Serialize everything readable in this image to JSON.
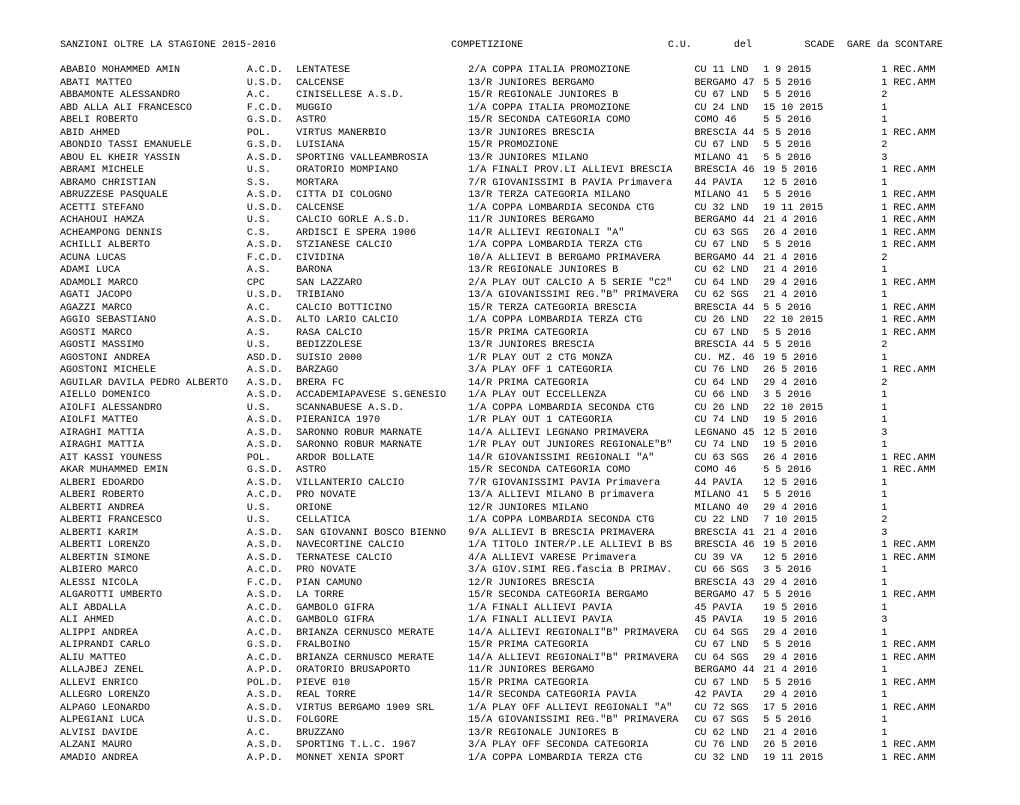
{
  "header": {
    "sanzioni": "SANZIONI OLTRE LA STAGIONE   2015-2016",
    "competizione": "COMPETIZIONE",
    "cu": "C.U.",
    "del": "del",
    "scade": "SCADE",
    "gare": "GARE da SCONTARE"
  },
  "rows": [
    {
      "name": "ABABIO MOHAMMED AMIN",
      "c1": "A.C.D.",
      "c2": "LENTATESE",
      "comp": "2/A COPPA ITALIA PROMOZIONE",
      "cu": "CU 11 LND",
      "del": "1  9 2015",
      "scade": "",
      "rest": "1  REC.AMM"
    },
    {
      "name": "ABATI MATTEO",
      "c1": "U.S.D.",
      "c2": "CALCENSE",
      "comp": "13/R JUNIORES BERGAMO",
      "cu": "BERGAMO 47",
      "del": "5  5 2016",
      "scade": "",
      "rest": "1  REC.AMM"
    },
    {
      "name": "ABBAMONTE ALESSANDRO",
      "c1": "A.C.",
      "c2": "CINISELLESE A.S.D.",
      "comp": "15/R REGIONALE JUNIORES B",
      "cu": "CU 67 LND",
      "del": "5  5 2016",
      "scade": "",
      "rest": "2"
    },
    {
      "name": "ABD ALLA ALI FRANCESCO",
      "c1": "F.C.D.",
      "c2": "MUGGIO",
      "comp": "1/A COPPA ITALIA PROMOZIONE",
      "cu": "CU 24 LND",
      "del": "15 10 2015",
      "scade": "",
      "rest": "1"
    },
    {
      "name": "ABELI ROBERTO",
      "c1": "G.S.D.",
      "c2": "ASTRO",
      "comp": "15/R SECONDA CATEGORIA COMO",
      "cu": "COMO 46",
      "del": "5  5 2016",
      "scade": "",
      "rest": "1"
    },
    {
      "name": "ABID AHMED",
      "c1": "POL.",
      "c2": "VIRTUS MANERBIO",
      "comp": "13/R JUNIORES BRESCIA",
      "cu": "BRESCIA 44",
      "del": "5  5 2016",
      "scade": "",
      "rest": "1  REC.AMM"
    },
    {
      "name": "ABONDIO TASSI EMANUELE",
      "c1": "G.S.D.",
      "c2": "LUISIANA",
      "comp": "15/R PROMOZIONE",
      "cu": "CU 67 LND",
      "del": "5  5 2016",
      "scade": "",
      "rest": "2"
    },
    {
      "name": "ABOU EL KHEIR YASSIN",
      "c1": "A.S.D.",
      "c2": "SPORTING VALLEAMBROSIA",
      "comp": "13/R JUNIORES MILANO",
      "cu": "MILANO 41",
      "del": "5  5 2016",
      "scade": "",
      "rest": "3"
    },
    {
      "name": "ABRAMI MICHELE",
      "c1": "U.S.",
      "c2": "ORATORIO MOMPIANO",
      "comp": "1/A FINALI PROV.LI ALLIEVI BRESCIA",
      "cu": "BRESCIA 46",
      "del": "19  5 2016",
      "scade": "",
      "rest": "1  REC.AMM"
    },
    {
      "name": "ABRAMO CHRISTIAN",
      "c1": "S.S.",
      "c2": "MORTARA",
      "comp": "7/R GIOVANISSIMI B PAVIA Primavera",
      "cu": "44 PAVIA",
      "del": "12  5 2016",
      "scade": "",
      "rest": "1"
    },
    {
      "name": "ABRUZZESE PASQUALE",
      "c1": "A.S.D.",
      "c2": "CITTA DI COLOGNO",
      "comp": "13/R TERZA CATEGORIA MILANO",
      "cu": "MILANO 41",
      "del": "5  5 2016",
      "scade": "",
      "rest": "1  REC.AMM"
    },
    {
      "name": "ACETTI STEFANO",
      "c1": "U.S.D.",
      "c2": "CALCENSE",
      "comp": "1/A COPPA LOMBARDIA SECONDA CTG",
      "cu": "CU 32 LND",
      "del": "19 11 2015",
      "scade": "",
      "rest": "1  REC.AMM"
    },
    {
      "name": "ACHAHOUI HAMZA",
      "c1": "U.S.",
      "c2": "CALCIO GORLE A.S.D.",
      "comp": "11/R JUNIORES BERGAMO",
      "cu": "BERGAMO 44",
      "del": "21  4 2016",
      "scade": "",
      "rest": "1  REC.AMM"
    },
    {
      "name": "ACHEAMPONG DENNIS",
      "c1": "C.S.",
      "c2": "ARDISCI E SPERA 1906",
      "comp": "14/R ALLIEVI REGIONALI \"A\"",
      "cu": "CU 63 SGS",
      "del": "26  4 2016",
      "scade": "",
      "rest": "1  REC.AMM"
    },
    {
      "name": "ACHILLI ALBERTO",
      "c1": "A.S.D.",
      "c2": "STZIANESE CALCIO",
      "comp": "1/A COPPA LOMBARDIA TERZA CTG",
      "cu": "CU 67 LND",
      "del": "5  5 2016",
      "scade": "",
      "rest": "1  REC.AMM"
    },
    {
      "name": "ACUNA LUCAS",
      "c1": "F.C.D.",
      "c2": "CIVIDINA",
      "comp": "10/A ALLIEVI B BERGAMO PRIMAVERA",
      "cu": "BERGAMO 44",
      "del": "21  4 2016",
      "scade": "",
      "rest": "2"
    },
    {
      "name": "ADAMI LUCA",
      "c1": "A.S.",
      "c2": "BARONA",
      "comp": "13/R REGIONALE JUNIORES B",
      "cu": "CU 62 LND",
      "del": "21  4 2016",
      "scade": "",
      "rest": "1"
    },
    {
      "name": "ADAMOLI MARCO",
      "c1": "CPC",
      "c2": "SAN LAZZARO",
      "comp": "2/A PLAY OUT CALCIO A 5 SERIE \"C2\"",
      "cu": "CU 64 LND",
      "del": "29  4 2016",
      "scade": "",
      "rest": "1  REC.AMM"
    },
    {
      "name": "AGATI JACOPO",
      "c1": "U.S.D.",
      "c2": "TRIBIANO",
      "comp": "13/A GIOVANISSIMI REG.\"B\" PRIMAVERA",
      "cu": "CU 62 SGS",
      "del": "21  4 2016",
      "scade": "",
      "rest": "1"
    },
    {
      "name": "AGAZZI MARCO",
      "c1": "A.C.",
      "c2": "CALCIO BOTTICINO",
      "comp": "15/R TERZA CATEGORIA BRESCIA",
      "cu": "BRESCIA 44",
      "del": "5  5 2016",
      "scade": "",
      "rest": "1  REC.AMM"
    },
    {
      "name": "AGGIO SEBASTIANO",
      "c1": "A.S.D.",
      "c2": "ALTO LARIO CALCIO",
      "comp": "1/A COPPA LOMBARDIA TERZA CTG",
      "cu": "CU 26 LND",
      "del": "22 10 2015",
      "scade": "",
      "rest": "1  REC.AMM"
    },
    {
      "name": "AGOSTI MARCO",
      "c1": "A.S.",
      "c2": "RASA CALCIO",
      "comp": "15/R PRIMA CATEGORIA",
      "cu": "CU 67 LND",
      "del": "5  5 2016",
      "scade": "",
      "rest": "1  REC.AMM"
    },
    {
      "name": "AGOSTI MASSIMO",
      "c1": "U.S.",
      "c2": "BEDIZZOLESE",
      "comp": "13/R JUNIORES BRESCIA",
      "cu": "BRESCIA 44",
      "del": "5  5 2016",
      "scade": "",
      "rest": "2"
    },
    {
      "name": "AGOSTONI ANDREA",
      "c1": "ASD.D.",
      "c2": "SUISIO 2000",
      "comp": "1/R PLAY OUT 2 CTG MONZA",
      "cu": "CU. MZ. 46",
      "del": "19  5 2016",
      "scade": "",
      "rest": "1"
    },
    {
      "name": "AGOSTONI MICHELE",
      "c1": "A.S.D.",
      "c2": "BARZAGO",
      "comp": "3/A PLAY OFF 1 CATEGORIA",
      "cu": "CU 76 LND",
      "del": "26  5 2016",
      "scade": "",
      "rest": "1  REC.AMM"
    },
    {
      "name": "AGUILAR DAVILA PEDRO ALBERTO",
      "c1": "A.S.D.",
      "c2": "BRERA FC",
      "comp": "14/R PRIMA CATEGORIA",
      "cu": "CU 64 LND",
      "del": "29  4 2016",
      "scade": "",
      "rest": "2"
    },
    {
      "name": "AIELLO DOMENICO",
      "c1": "A.S.D.",
      "c2": "ACCADEMIAPAVESE S.GENESIO",
      "comp": "1/A PLAY OUT ECCELLENZA",
      "cu": "CU 66 LND",
      "del": "3  5 2016",
      "scade": "",
      "rest": "1"
    },
    {
      "name": "AIOLFI ALESSANDRO",
      "c1": "U.S.",
      "c2": "SCANNABUESE A.S.D.",
      "comp": "1/A COPPA LOMBARDIA SECONDA CTG",
      "cu": "CU 26 LND",
      "del": "22 10 2015",
      "scade": "",
      "rest": "1"
    },
    {
      "name": "AIOLFI MATTEO",
      "c1": "A.S.D.",
      "c2": "PIERANICA 1970",
      "comp": "1/R PLAY OUT 1 CATEGORIA",
      "cu": "CU 74 LND",
      "del": "19  5 2016",
      "scade": "",
      "rest": "1"
    },
    {
      "name": "AIRAGHI MATTIA",
      "c1": "A.S.D.",
      "c2": "SARONNO ROBUR MARNATE",
      "comp": "14/A ALLIEVI LEGNANO PRIMAVERA",
      "cu": "LEGNANO 45",
      "del": "12  5 2016",
      "scade": "",
      "rest": "3"
    },
    {
      "name": "AIRAGHI MATTIA",
      "c1": "A.S.D.",
      "c2": "SARONNO ROBUR MARNATE",
      "comp": "1/R PLAY OUT JUNIORES REGIONALE\"B\"",
      "cu": "CU 74 LND",
      "del": "19  5 2016",
      "scade": "",
      "rest": "1"
    },
    {
      "name": "AIT KASSI YOUNESS",
      "c1": "POL.",
      "c2": "ARDOR BOLLATE",
      "comp": "14/R GIOVANISSIMI REGIONALI \"A\"",
      "cu": "CU 63 SGS",
      "del": "26  4 2016",
      "scade": "",
      "rest": "1  REC.AMM"
    },
    {
      "name": "AKAR MUHAMMED EMIN",
      "c1": "G.S.D.",
      "c2": "ASTRO",
      "comp": "15/R SECONDA CATEGORIA COMO",
      "cu": "COMO 46",
      "del": "5  5 2016",
      "scade": "",
      "rest": "1  REC.AMM"
    },
    {
      "name": "ALBERI EDOARDO",
      "c1": "A.S.D.",
      "c2": "VILLANTERIO CALCIO",
      "comp": "7/R GIOVANISSIMI PAVIA Primavera",
      "cu": "44 PAVIA",
      "del": "12  5 2016",
      "scade": "",
      "rest": "1"
    },
    {
      "name": "ALBERI ROBERTO",
      "c1": "A.C.D.",
      "c2": "PRO NOVATE",
      "comp": "13/A ALLIEVI MILANO B primavera",
      "cu": "MILANO 41",
      "del": "5  5 2016",
      "scade": "",
      "rest": "1"
    },
    {
      "name": "ALBERTI ANDREA",
      "c1": "U.S.",
      "c2": "ORIONE",
      "comp": "12/R JUNIORES MILANO",
      "cu": "MILANO 40",
      "del": "29  4 2016",
      "scade": "",
      "rest": "1"
    },
    {
      "name": "ALBERTI FRANCESCO",
      "c1": "U.S.",
      "c2": "CELLATICA",
      "comp": "1/A COPPA LOMBARDIA SECONDA CTG",
      "cu": "CU 22 LND",
      "del": "7 10 2015",
      "scade": "",
      "rest": "2"
    },
    {
      "name": "ALBERTI KARIM",
      "c1": "A.S.D.",
      "c2": "SAN GIOVANNI BOSCO BIENNO",
      "comp": "9/A ALLIEVI B BRESCIA PRIMAVERA",
      "cu": "BRESCIA 41",
      "del": "21  4 2016",
      "scade": "",
      "rest": "3"
    },
    {
      "name": "ALBERTI LORENZO",
      "c1": "A.S.D.",
      "c2": "NAVECORTINE CALCIO",
      "comp": "1/A TITOLO INTER/P.LE ALLIEVI B BS",
      "cu": "BRESCIA 46",
      "del": "19  5 2016",
      "scade": "",
      "rest": "1  REC.AMM"
    },
    {
      "name": "ALBERTIN SIMONE",
      "c1": "A.S.D.",
      "c2": "TERNATESE CALCIO",
      "comp": "4/A ALLIEVI VARESE Primavera",
      "cu": "CU 39 VA",
      "del": "12  5 2016",
      "scade": "",
      "rest": "1  REC.AMM"
    },
    {
      "name": "ALBIERO MARCO",
      "c1": "A.C.D.",
      "c2": "PRO NOVATE",
      "comp": "3/A GIOV.SIMI REG.fascia B PRIMAV.",
      "cu": "CU 66 SGS",
      "del": "3  5 2016",
      "scade": "",
      "rest": "1"
    },
    {
      "name": "ALESSI NICOLA",
      "c1": "F.C.D.",
      "c2": "PIAN CAMUNO",
      "comp": "12/R JUNIORES BRESCIA",
      "cu": "BRESCIA 43",
      "del": "29  4 2016",
      "scade": "",
      "rest": "1"
    },
    {
      "name": "ALGAROTTI UMBERTO",
      "c1": "A.S.D.",
      "c2": "LA TORRE",
      "comp": "15/R SECONDA CATEGORIA BERGAMO",
      "cu": "BERGAMO 47",
      "del": "5  5 2016",
      "scade": "",
      "rest": "1  REC.AMM"
    },
    {
      "name": "ALI ABDALLA",
      "c1": "A.C.D.",
      "c2": "GAMBOLO GIFRA",
      "comp": "1/A FINALI ALLIEVI PAVIA",
      "cu": "45 PAVIA",
      "del": "19  5 2016",
      "scade": "",
      "rest": "1"
    },
    {
      "name": "ALI AHMED",
      "c1": "A.C.D.",
      "c2": "GAMBOLO GIFRA",
      "comp": "1/A FINALI ALLIEVI PAVIA",
      "cu": "45 PAVIA",
      "del": "19  5 2016",
      "scade": "",
      "rest": "3"
    },
    {
      "name": "ALIPPI ANDREA",
      "c1": "A.C.D.",
      "c2": "BRIANZA CERNUSCO MERATE",
      "comp": "14/A ALLIEVI REGIONALI\"B\" PRIMAVERA",
      "cu": "CU 64 SGS",
      "del": "29  4 2016",
      "scade": "",
      "rest": "1"
    },
    {
      "name": "ALIPRANDI CARLO",
      "c1": "G.S.D.",
      "c2": "FRALBOINO",
      "comp": "15/R PRIMA CATEGORIA",
      "cu": "CU 67 LND",
      "del": "5  5 2016",
      "scade": "",
      "rest": "1  REC.AMM"
    },
    {
      "name": "ALIU MATTEO",
      "c1": "A.C.D.",
      "c2": "BRIANZA CERNUSCO MERATE",
      "comp": "14/A ALLIEVI REGIONALI\"B\" PRIMAVERA",
      "cu": "CU 64 SGS",
      "del": "29  4 2016",
      "scade": "",
      "rest": "1  REC.AMM"
    },
    {
      "name": "ALLAJBEJ ZENEL",
      "c1": "A.P.D.",
      "c2": "ORATORIO BRUSAPORTO",
      "comp": "11/R JUNIORES BERGAMO",
      "cu": "BERGAMO 44",
      "del": "21  4 2016",
      "scade": "",
      "rest": "1"
    },
    {
      "name": "ALLEVI ENRICO",
      "c1": "POL.D.",
      "c2": "PIEVE 010",
      "comp": "15/R PRIMA CATEGORIA",
      "cu": "CU 67 LND",
      "del": "5  5 2016",
      "scade": "",
      "rest": "1  REC.AMM"
    },
    {
      "name": "ALLEGRO LORENZO",
      "c1": "A.S.D.",
      "c2": "REAL TORRE",
      "comp": "14/R SECONDA CATEGORIA PAVIA",
      "cu": "42 PAVIA",
      "del": "29  4 2016",
      "scade": "",
      "rest": "1"
    },
    {
      "name": "ALPAGO LEONARDO",
      "c1": "A.S.D.",
      "c2": "VIRTUS BERGAMO 1909 SRL",
      "comp": "1/A PLAY OFF ALLIEVI REGIONALI \"A\"",
      "cu": "CU 72 SGS",
      "del": "17  5 2016",
      "scade": "",
      "rest": "1  REC.AMM"
    },
    {
      "name": "ALPEGIANI LUCA",
      "c1": "U.S.D.",
      "c2": "FOLGORE",
      "comp": "15/A GIOVANISSIMI REG.\"B\" PRIMAVERA",
      "cu": "CU 67 SGS",
      "del": "5  5 2016",
      "scade": "",
      "rest": "1"
    },
    {
      "name": "ALVISI DAVIDE",
      "c1": "A.C.",
      "c2": "BRUZZANO",
      "comp": "13/R REGIONALE JUNIORES B",
      "cu": "CU 62 LND",
      "del": "21  4 2016",
      "scade": "",
      "rest": "1"
    },
    {
      "name": "ALZANI MAURO",
      "c1": "A.S.D.",
      "c2": "SPORTING T.L.C. 1967",
      "comp": "3/A PLAY OFF SECONDA CATEGORIA",
      "cu": "CU 76 LND",
      "del": "26  5 2016",
      "scade": "",
      "rest": "1  REC.AMM"
    },
    {
      "name": "AMADIO ANDREA",
      "c1": "A.P.D.",
      "c2": "MONNET XENIA SPORT",
      "comp": "1/A COPPA LOMBARDIA TERZA CTG",
      "cu": "CU 32 LND",
      "del": "19 11 2015",
      "scade": "",
      "rest": "1  REC.AMM"
    }
  ]
}
